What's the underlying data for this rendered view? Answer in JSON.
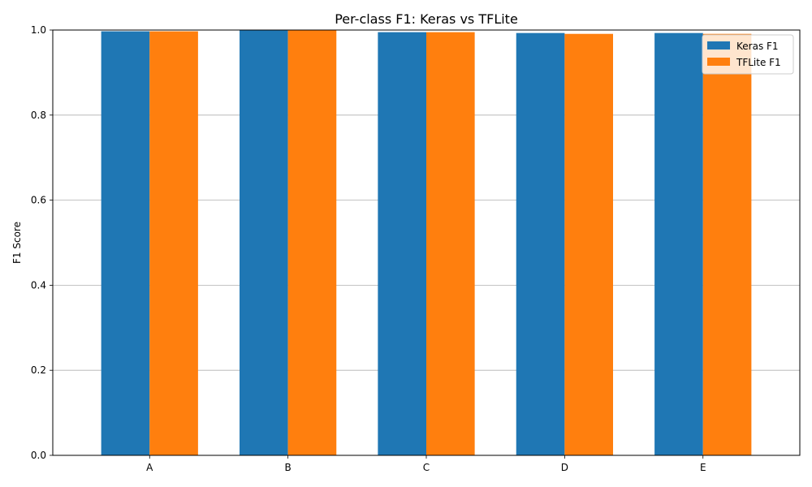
{
  "chart_data": {
    "type": "bar",
    "title": "Per-class F1: Keras vs TFLite",
    "xlabel": "",
    "ylabel": "F1 Score",
    "categories": [
      "A",
      "B",
      "C",
      "D",
      "E"
    ],
    "series": [
      {
        "name": "Keras F1",
        "color": "#1f77b4",
        "values": [
          0.997,
          1.0,
          0.995,
          0.993,
          0.993
        ]
      },
      {
        "name": "TFLite F1",
        "color": "#ff7f0e",
        "values": [
          0.997,
          1.0,
          0.995,
          0.991,
          0.991
        ]
      }
    ],
    "ylim": [
      0,
      1.0
    ],
    "yticks": [
      "0.0",
      "0.2",
      "0.4",
      "0.6",
      "0.8",
      "1.0"
    ],
    "grid": "y",
    "legend_position": "top-right"
  }
}
